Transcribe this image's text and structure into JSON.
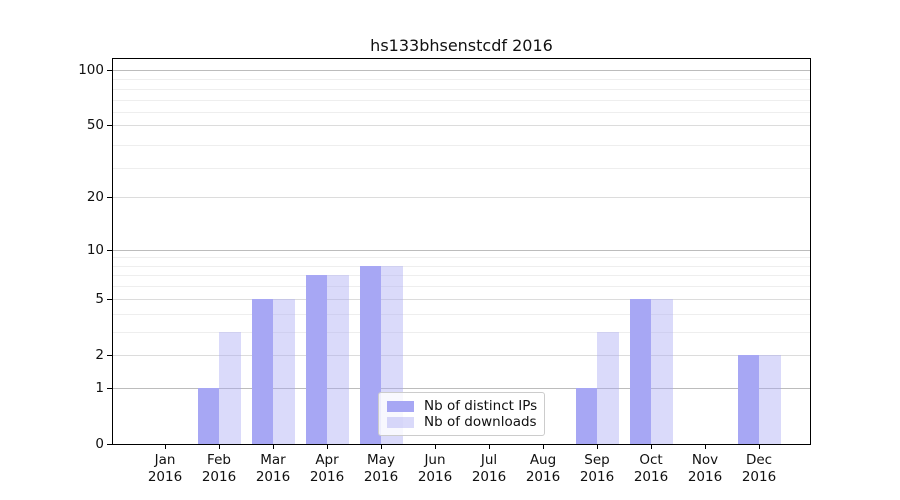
{
  "title": "hs133bhsenstcdf 2016",
  "colors": {
    "distinct_ips": "#a7a7f4",
    "downloads_rgba": "rgba(167,167,244,0.42)",
    "grid_decade": "#bcbcbc",
    "grid_major": "#dcdcdc",
    "grid_minor": "#eeeeee",
    "axis": "#000000",
    "legend_border": "#cccccc"
  },
  "legend": {
    "items": [
      {
        "label": "Nb of distinct IPs",
        "color_key": "distinct_ips"
      },
      {
        "label": "Nb of downloads",
        "color_key": "downloads"
      }
    ]
  },
  "chart_data": {
    "type": "bar",
    "title": "hs133bhsenstcdf 2016",
    "scale": "log10(1+y)",
    "months": [
      "Jan",
      "Feb",
      "Mar",
      "Apr",
      "May",
      "Jun",
      "Jul",
      "Aug",
      "Sep",
      "Oct",
      "Nov",
      "Dec"
    ],
    "year": "2016",
    "series": [
      {
        "name": "Nb of distinct IPs",
        "color_key": "distinct_ips",
        "values": [
          0,
          1,
          5,
          7,
          8,
          0,
          0,
          0,
          1,
          5,
          0,
          2
        ]
      },
      {
        "name": "Nb of downloads",
        "color_key": "downloads",
        "values": [
          0,
          3,
          5,
          7,
          8,
          0,
          0,
          0,
          3,
          5,
          0,
          2
        ]
      }
    ],
    "y_ticks": [
      0,
      1,
      2,
      5,
      10,
      20,
      50,
      100
    ],
    "y_decade_ticks": [
      1,
      10,
      100
    ],
    "y_minor_gridlines": [
      3,
      4,
      6,
      7,
      8,
      9,
      29,
      39,
      59,
      69,
      79,
      89
    ],
    "ylim": [
      0,
      115
    ],
    "grid": true,
    "legend_position": "lower center"
  }
}
